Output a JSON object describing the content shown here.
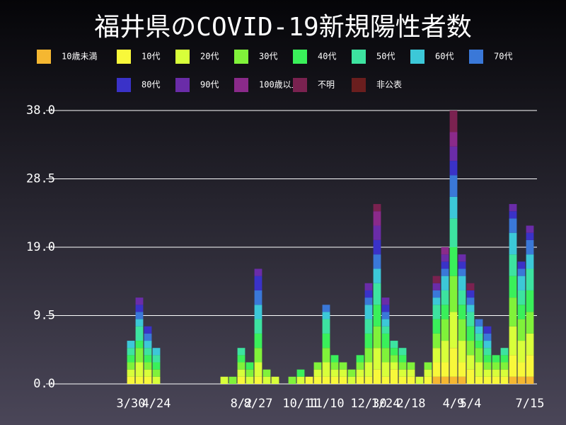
{
  "chart_data": {
    "type": "stacked-bar",
    "title": "福井県のCOVID-19新規陽性者数",
    "categories": [
      null,
      null,
      null,
      null,
      null,
      null,
      null,
      "3/30",
      null,
      null,
      "4/24",
      null,
      null,
      null,
      null,
      null,
      null,
      null,
      null,
      null,
      "8/2",
      null,
      "8/27",
      null,
      null,
      null,
      null,
      "10/11",
      null,
      null,
      "11/10",
      null,
      null,
      null,
      null,
      "12/30",
      null,
      "1/24",
      null,
      null,
      "2/18",
      null,
      null,
      null,
      null,
      "4/9",
      null,
      "5/4",
      null,
      null,
      null,
      null,
      null,
      null,
      "7/15"
    ],
    "series": [
      {
        "name": "10歳未満",
        "color": "#f5b731",
        "values": [
          0,
          0,
          0,
          0,
          0,
          0,
          0,
          0,
          0,
          0,
          0,
          0,
          0,
          0,
          0,
          0,
          0,
          0,
          0,
          0,
          0,
          0,
          0,
          0,
          0,
          0,
          0,
          0,
          0,
          0,
          0,
          0,
          0,
          0,
          0,
          0,
          0,
          0,
          0,
          0,
          0,
          0,
          0,
          1,
          1,
          1,
          1,
          0,
          0,
          0,
          0,
          0,
          1,
          1,
          1
        ]
      },
      {
        "name": "10代",
        "color": "#f8f83a",
        "values": [
          0,
          0,
          0,
          0,
          0,
          0,
          0,
          1,
          1,
          1,
          0,
          0,
          0,
          0,
          0,
          0,
          0,
          0,
          0,
          0,
          1,
          0,
          1,
          0,
          0,
          0,
          0,
          0,
          1,
          1,
          1,
          1,
          1,
          0,
          1,
          1,
          2,
          1,
          2,
          1,
          1,
          0,
          1,
          2,
          2,
          4,
          2,
          2,
          1,
          1,
          1,
          1,
          3,
          2,
          3
        ]
      },
      {
        "name": "20代",
        "color": "#d8ff3a",
        "values": [
          0,
          0,
          0,
          0,
          0,
          0,
          0,
          1,
          2,
          1,
          1,
          0,
          0,
          0,
          0,
          0,
          0,
          0,
          1,
          0,
          1,
          1,
          2,
          1,
          1,
          0,
          0,
          1,
          0,
          1,
          2,
          1,
          1,
          1,
          1,
          2,
          3,
          2,
          1,
          1,
          1,
          1,
          1,
          2,
          3,
          5,
          3,
          2,
          2,
          1,
          1,
          1,
          4,
          3,
          3
        ]
      },
      {
        "name": "30代",
        "color": "#80f23a",
        "values": [
          0,
          0,
          0,
          0,
          0,
          0,
          0,
          1,
          2,
          1,
          1,
          0,
          0,
          0,
          0,
          0,
          0,
          0,
          0,
          1,
          1,
          1,
          2,
          1,
          0,
          0,
          1,
          0,
          0,
          1,
          2,
          1,
          1,
          1,
          1,
          2,
          3,
          2,
          1,
          1,
          1,
          0,
          1,
          2,
          3,
          5,
          3,
          2,
          2,
          1,
          1,
          1,
          4,
          3,
          3
        ]
      },
      {
        "name": "40代",
        "color": "#3af05a",
        "values": [
          0,
          0,
          0,
          0,
          0,
          0,
          0,
          1,
          1,
          1,
          1,
          0,
          0,
          0,
          0,
          0,
          0,
          0,
          0,
          0,
          1,
          1,
          2,
          0,
          0,
          0,
          0,
          1,
          0,
          0,
          2,
          1,
          0,
          0,
          1,
          2,
          3,
          2,
          1,
          1,
          0,
          0,
          0,
          2,
          2,
          4,
          2,
          2,
          1,
          1,
          1,
          1,
          3,
          2,
          3
        ]
      },
      {
        "name": "50代",
        "color": "#3de3a0",
        "values": [
          0,
          0,
          0,
          0,
          0,
          0,
          0,
          1,
          2,
          1,
          1,
          0,
          0,
          0,
          0,
          0,
          0,
          0,
          0,
          0,
          1,
          0,
          2,
          0,
          0,
          0,
          0,
          0,
          0,
          0,
          2,
          0,
          0,
          0,
          0,
          2,
          3,
          1,
          1,
          1,
          0,
          0,
          0,
          2,
          2,
          4,
          2,
          2,
          1,
          1,
          0,
          1,
          3,
          2,
          3
        ]
      },
      {
        "name": "60代",
        "color": "#3cc8d8",
        "values": [
          0,
          0,
          0,
          0,
          0,
          0,
          0,
          1,
          1,
          1,
          1,
          0,
          0,
          0,
          0,
          0,
          0,
          0,
          0,
          0,
          0,
          0,
          2,
          0,
          0,
          0,
          0,
          0,
          0,
          0,
          1,
          0,
          0,
          0,
          0,
          2,
          2,
          1,
          0,
          0,
          0,
          0,
          0,
          1,
          2,
          3,
          2,
          1,
          1,
          1,
          0,
          0,
          3,
          2,
          2
        ]
      },
      {
        "name": "70代",
        "color": "#3a78d8",
        "values": [
          0,
          0,
          0,
          0,
          0,
          0,
          0,
          0,
          1,
          1,
          0,
          0,
          0,
          0,
          0,
          0,
          0,
          0,
          0,
          0,
          0,
          0,
          2,
          0,
          0,
          0,
          0,
          0,
          0,
          0,
          1,
          0,
          0,
          0,
          0,
          1,
          2,
          1,
          0,
          0,
          0,
          0,
          0,
          1,
          1,
          3,
          1,
          1,
          1,
          1,
          0,
          0,
          2,
          1,
          2
        ]
      },
      {
        "name": "80代",
        "color": "#3a32c8",
        "values": [
          0,
          0,
          0,
          0,
          0,
          0,
          0,
          0,
          1,
          1,
          0,
          0,
          0,
          0,
          0,
          0,
          0,
          0,
          0,
          0,
          0,
          0,
          2,
          0,
          0,
          0,
          0,
          0,
          0,
          0,
          0,
          0,
          0,
          0,
          0,
          1,
          2,
          1,
          0,
          0,
          0,
          0,
          0,
          0,
          1,
          2,
          1,
          1,
          0,
          1,
          0,
          0,
          1,
          1,
          1
        ]
      },
      {
        "name": "90代",
        "color": "#6a2ca8",
        "values": [
          0,
          0,
          0,
          0,
          0,
          0,
          0,
          0,
          1,
          0,
          0,
          0,
          0,
          0,
          0,
          0,
          0,
          0,
          0,
          0,
          0,
          0,
          1,
          0,
          0,
          0,
          0,
          0,
          0,
          0,
          0,
          0,
          0,
          0,
          0,
          1,
          2,
          1,
          0,
          0,
          0,
          0,
          0,
          1,
          1,
          2,
          1,
          0,
          0,
          0,
          0,
          0,
          1,
          0,
          1
        ]
      },
      {
        "name": "100歳以上",
        "color": "#8a2a8a",
        "values": [
          0,
          0,
          0,
          0,
          0,
          0,
          0,
          0,
          0,
          0,
          0,
          0,
          0,
          0,
          0,
          0,
          0,
          0,
          0,
          0,
          0,
          0,
          0,
          0,
          0,
          0,
          0,
          0,
          0,
          0,
          0,
          0,
          0,
          0,
          0,
          0,
          2,
          0,
          0,
          0,
          0,
          0,
          0,
          0,
          1,
          2,
          0,
          0,
          0,
          0,
          0,
          0,
          0,
          0,
          0
        ]
      },
      {
        "name": "不明",
        "color": "#7a2250",
        "values": [
          0,
          0,
          0,
          0,
          0,
          0,
          0,
          0,
          0,
          0,
          0,
          0,
          0,
          0,
          0,
          0,
          0,
          0,
          0,
          0,
          0,
          0,
          0,
          0,
          0,
          0,
          0,
          0,
          0,
          0,
          0,
          0,
          0,
          0,
          0,
          0,
          1,
          0,
          0,
          0,
          0,
          0,
          0,
          1,
          0,
          3,
          0,
          1,
          0,
          0,
          0,
          0,
          0,
          0,
          0
        ]
      },
      {
        "name": "非公表",
        "color": "#6a1e1e",
        "values": [
          0,
          0,
          0,
          0,
          0,
          0,
          0,
          0,
          0,
          0,
          0,
          0,
          0,
          0,
          0,
          0,
          0,
          0,
          0,
          0,
          0,
          0,
          0,
          0,
          0,
          0,
          0,
          0,
          0,
          0,
          0,
          0,
          0,
          0,
          0,
          0,
          0,
          0,
          0,
          0,
          0,
          0,
          0,
          0,
          0,
          0,
          0,
          0,
          0,
          0,
          0,
          0,
          0,
          0,
          0
        ]
      }
    ],
    "ylim": [
      0,
      38
    ],
    "yticks": [
      {
        "value": 0,
        "label": "0.0"
      },
      9.5,
      {
        "value": 19,
        "label": "19.0"
      },
      28.5,
      {
        "value": 38,
        "label": "38.0"
      }
    ],
    "grid": true
  }
}
